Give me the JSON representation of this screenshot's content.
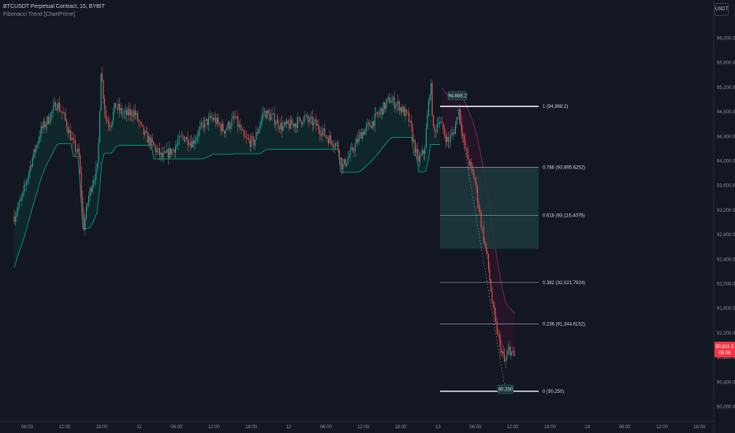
{
  "header": {
    "symbol_line": "BTCUSDT Perpetual Contract, 15, BYBIT",
    "indicator": "Fibonacci Trend [ChartPrime]"
  },
  "currency": "USDT",
  "price_axis": {
    "labels": [
      "96,000.0",
      "95,600.0",
      "95,200.0",
      "94,800.0",
      "94,400.0",
      "94,000.0",
      "93,600.0",
      "93,200.0",
      "92,800.0",
      "92,400.0",
      "92,000.0",
      "91,600.0",
      "91,200.0",
      "90,800.0",
      "90,400.0",
      "90,000.0"
    ],
    "current_price": "90,811.5",
    "countdown": "05:06",
    "current_price_color": "#f23645"
  },
  "time_axis": {
    "labels": [
      "06:00",
      "12:00",
      "18:00",
      "11",
      "06:00",
      "12:00",
      "18:00",
      "12",
      "06:00",
      "12:00",
      "18:00",
      "13",
      "06:00",
      "12:00",
      "18:00",
      "14",
      "06:00",
      "12:00",
      "18:00"
    ]
  },
  "fib": {
    "top_tag": "94,888.2",
    "bottom_tag": "90,250",
    "levels": [
      {
        "ratio": 1,
        "label": "1 (94,888.2)"
      },
      {
        "ratio": 0.786,
        "label": "0.786 (93,895.6252)"
      },
      {
        "ratio": 0.618,
        "label": "0.618 (93,116.4076)"
      },
      {
        "ratio": 0.382,
        "label": "0.382 (92,021.7924)"
      },
      {
        "ratio": 0.236,
        "label": "0.236 (91,344.6152)"
      },
      {
        "ratio": 0,
        "label": "0 (90,250)"
      }
    ],
    "zone_color": "#1c3a3e"
  },
  "colors": {
    "up": "#26a69a",
    "down": "#ef5350",
    "trend_up": "#089981",
    "trend_down": "#7b2e5a"
  }
}
